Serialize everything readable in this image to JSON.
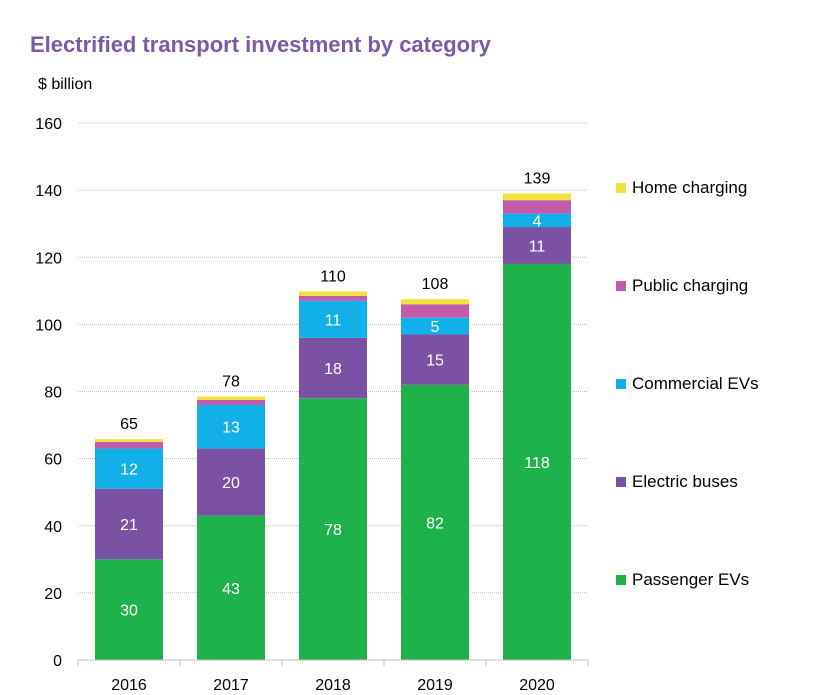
{
  "title": "Electrified transport investment by category",
  "unit_label": "$ billion",
  "chart_data": {
    "type": "bar",
    "stacked": true,
    "title": "Electrified transport investment by category",
    "ylabel": "$ billion",
    "xlabel": "",
    "ylim": [
      0,
      160
    ],
    "yticks": [
      0,
      20,
      40,
      60,
      80,
      100,
      120,
      140,
      160
    ],
    "grid": true,
    "legend_position": "right",
    "categories": [
      "2016",
      "2017",
      "2018",
      "2019",
      "2020"
    ],
    "totals": [
      65,
      78,
      110,
      108,
      139
    ],
    "series": [
      {
        "name": "Passenger EVs",
        "color": "#1fb24a",
        "values": [
          30,
          43,
          78,
          82,
          118
        ],
        "labels": [
          "30",
          "43",
          "78",
          "82",
          "118"
        ]
      },
      {
        "name": "Electric buses",
        "color": "#7b52a3",
        "values": [
          21,
          20,
          18,
          15,
          11
        ],
        "labels": [
          "21",
          "20",
          "18",
          "15",
          "11"
        ]
      },
      {
        "name": "Commercial EVs",
        "color": "#12b0e8",
        "values": [
          12,
          13,
          11,
          5,
          4
        ],
        "labels": [
          "12",
          "13",
          "11",
          "5",
          "4"
        ]
      },
      {
        "name": "Public charging",
        "color": "#c35bad",
        "values": [
          2,
          1.5,
          1.5,
          4,
          4
        ],
        "labels": [
          "",
          "",
          "",
          "",
          ""
        ]
      },
      {
        "name": "Home charging",
        "color": "#f3e23a",
        "values": [
          0.8,
          1,
          1.3,
          1.5,
          2
        ],
        "labels": [
          "",
          "",
          "",
          "",
          ""
        ]
      }
    ],
    "legend_order": [
      "Home charging",
      "Public charging",
      "Commercial EVs",
      "Electric buses",
      "Passenger EVs"
    ]
  }
}
